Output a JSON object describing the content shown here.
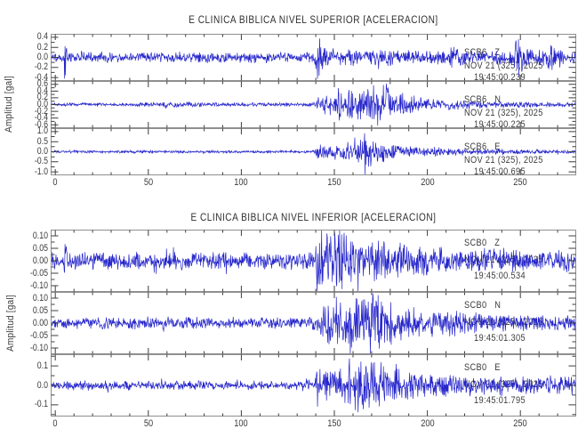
{
  "figure": {
    "background": "#ffffff",
    "trace_color": "#2626cb",
    "frame_color": "#8f8f8f",
    "tick_color": "#3d3d3d",
    "text_color": "#3a3a3a"
  },
  "chart_data": [
    {
      "type": "line",
      "title": "E CLINICA BIBLICA NIVEL SUPERIOR [ACELERACION]",
      "ylabel": "Amplitud [gal]",
      "xlim": [
        -2.5,
        280
      ],
      "xticks": [
        0,
        50,
        100,
        150,
        200,
        250
      ],
      "xtick_labels": [
        "0",
        "50",
        "100",
        "150",
        "200",
        "250"
      ],
      "x_minor_step": 10,
      "grid": false,
      "legend": "none",
      "traces": [
        {
          "station": "SCB6",
          "channel": "Z",
          "date_label": "NOV 21 (325), 2025",
          "time_label": "19:45:00.239",
          "ylim": [
            -0.47,
            0.47
          ],
          "yticks": [
            0.4,
            0.2,
            0.0,
            -0.2,
            -0.4
          ],
          "ytick_labels": [
            "0.4",
            "0.2",
            "0.0",
            "-0.2",
            "-0.4"
          ],
          "envelope": [
            [
              0,
              0.09
            ],
            [
              4,
              0.09
            ],
            [
              5,
              0.45
            ],
            [
              6.5,
              0.12
            ],
            [
              20,
              0.09
            ],
            [
              60,
              0.085
            ],
            [
              100,
              0.09
            ],
            [
              130,
              0.085
            ],
            [
              139,
              0.09
            ],
            [
              140.5,
              0.4
            ],
            [
              143,
              0.28
            ],
            [
              147,
              0.17
            ],
            [
              152,
              0.15
            ],
            [
              160,
              0.15
            ],
            [
              170,
              0.14
            ],
            [
              180,
              0.13
            ],
            [
              195,
              0.11
            ],
            [
              205,
              0.11
            ],
            [
              213,
              0.17
            ],
            [
              220,
              0.12
            ],
            [
              235,
              0.12
            ],
            [
              245,
              0.15
            ],
            [
              249,
              0.36
            ],
            [
              253,
              0.17
            ],
            [
              258,
              0.13
            ],
            [
              266,
              0.28
            ],
            [
              270,
              0.16
            ],
            [
              276,
              0.13
            ],
            [
              280,
              0.12
            ]
          ]
        },
        {
          "station": "SCB6",
          "channel": "N",
          "date_label": "NOV 21 (325), 2025",
          "time_label": "19:45:00.225",
          "ylim": [
            -0.7,
            0.7
          ],
          "yticks": [
            0.6,
            0.4,
            0.2,
            0.0,
            -0.2,
            -0.4,
            -0.6
          ],
          "ytick_labels": [
            "0.6",
            "0.4",
            "0.2",
            "0.0",
            "-0.2",
            "-0.4",
            "-0.6"
          ],
          "envelope": [
            [
              0,
              0.045
            ],
            [
              30,
              0.045
            ],
            [
              55,
              0.06
            ],
            [
              65,
              0.07
            ],
            [
              75,
              0.07
            ],
            [
              85,
              0.05
            ],
            [
              110,
              0.05
            ],
            [
              135,
              0.045
            ],
            [
              139,
              0.05
            ],
            [
              141,
              0.22
            ],
            [
              145,
              0.28
            ],
            [
              150,
              0.32
            ],
            [
              153,
              0.42
            ],
            [
              157,
              0.35
            ],
            [
              160,
              0.5
            ],
            [
              164,
              0.45
            ],
            [
              168,
              0.52
            ],
            [
              172,
              0.45
            ],
            [
              176,
              0.62
            ],
            [
              180,
              0.5
            ],
            [
              184,
              0.32
            ],
            [
              188,
              0.25
            ],
            [
              193,
              0.22
            ],
            [
              198,
              0.16
            ],
            [
              205,
              0.13
            ],
            [
              212,
              0.17
            ],
            [
              218,
              0.12
            ],
            [
              228,
              0.09
            ],
            [
              240,
              0.08
            ],
            [
              255,
              0.07
            ],
            [
              270,
              0.06
            ],
            [
              280,
              0.06
            ]
          ]
        },
        {
          "station": "SCB6",
          "channel": "E",
          "date_label": "NOV 21 (325), 2025",
          "time_label": "19:45:00.695",
          "ylim": [
            -1.17,
            1.17
          ],
          "yticks": [
            1.0,
            0.5,
            0.0,
            -0.5,
            -1.0
          ],
          "ytick_labels": [
            "1.0",
            "0.5",
            "0.0",
            "-0.5",
            "-1.0"
          ],
          "envelope": [
            [
              0,
              0.06
            ],
            [
              50,
              0.06
            ],
            [
              100,
              0.06
            ],
            [
              135,
              0.055
            ],
            [
              139,
              0.06
            ],
            [
              141,
              0.38
            ],
            [
              145,
              0.3
            ],
            [
              150,
              0.33
            ],
            [
              155,
              0.38
            ],
            [
              160,
              0.42
            ],
            [
              164,
              0.5
            ],
            [
              167,
              1.05
            ],
            [
              169,
              0.7
            ],
            [
              172,
              0.45
            ],
            [
              176,
              0.5
            ],
            [
              180,
              0.38
            ],
            [
              185,
              0.3
            ],
            [
              190,
              0.28
            ],
            [
              196,
              0.22
            ],
            [
              205,
              0.18
            ],
            [
              215,
              0.14
            ],
            [
              225,
              0.12
            ],
            [
              240,
              0.1
            ],
            [
              260,
              0.09
            ],
            [
              280,
              0.08
            ]
          ]
        }
      ]
    },
    {
      "type": "line",
      "title": "E CLINICA BIBLICA NIVEL INFERIOR [ACELERACION]",
      "ylabel": "Amplitud [gal]",
      "xlim": [
        -2.5,
        280
      ],
      "xticks": [
        0,
        50,
        100,
        150,
        200,
        250
      ],
      "xtick_labels": [
        "0",
        "50",
        "100",
        "150",
        "200",
        "250"
      ],
      "x_minor_step": 10,
      "grid": false,
      "legend": "none",
      "traces": [
        {
          "station": "SCB0",
          "channel": "Z",
          "date_label": "NOV 21 (325), 2025",
          "time_label": "19:45:00.534",
          "ylim": [
            -0.125,
            0.125
          ],
          "yticks": [
            0.1,
            0.05,
            0.0,
            -0.05,
            -0.1
          ],
          "ytick_labels": [
            "0.10",
            "0.05",
            "0.00",
            "-0.05",
            "-0.10"
          ],
          "envelope": [
            [
              0,
              0.028
            ],
            [
              4,
              0.028
            ],
            [
              5,
              0.1
            ],
            [
              6.5,
              0.03
            ],
            [
              30,
              0.028
            ],
            [
              70,
              0.03
            ],
            [
              110,
              0.028
            ],
            [
              135,
              0.028
            ],
            [
              139,
              0.03
            ],
            [
              140.5,
              0.12
            ],
            [
              144,
              0.1
            ],
            [
              148,
              0.09
            ],
            [
              152,
              0.11
            ],
            [
              156,
              0.09
            ],
            [
              160,
              0.08
            ],
            [
              165,
              0.085
            ],
            [
              170,
              0.075
            ],
            [
              176,
              0.07
            ],
            [
              182,
              0.06
            ],
            [
              190,
              0.055
            ],
            [
              200,
              0.05
            ],
            [
              212,
              0.045
            ],
            [
              225,
              0.04
            ],
            [
              240,
              0.04
            ],
            [
              260,
              0.038
            ],
            [
              280,
              0.035
            ]
          ]
        },
        {
          "station": "SCB0",
          "channel": "N",
          "date_label": "NOV 21 (325), 2025",
          "time_label": "19:45:01.305",
          "ylim": [
            -0.125,
            0.125
          ],
          "yticks": [
            0.1,
            0.05,
            0.0,
            -0.05,
            -0.1
          ],
          "ytick_labels": [
            "0.10",
            "0.05",
            "0.00",
            "-0.05",
            "-0.10"
          ],
          "envelope": [
            [
              0,
              0.018
            ],
            [
              60,
              0.02
            ],
            [
              120,
              0.018
            ],
            [
              136,
              0.018
            ],
            [
              140,
              0.04
            ],
            [
              144,
              0.06
            ],
            [
              148,
              0.08
            ],
            [
              152,
              0.09
            ],
            [
              156,
              0.1
            ],
            [
              160,
              0.12
            ],
            [
              164,
              0.1
            ],
            [
              168,
              0.12
            ],
            [
              172,
              0.1
            ],
            [
              176,
              0.08
            ],
            [
              181,
              0.07
            ],
            [
              187,
              0.06
            ],
            [
              194,
              0.05
            ],
            [
              202,
              0.045
            ],
            [
              212,
              0.04
            ],
            [
              225,
              0.035
            ],
            [
              245,
              0.03
            ],
            [
              265,
              0.028
            ],
            [
              280,
              0.028
            ]
          ]
        },
        {
          "station": "SCB0",
          "channel": "E",
          "date_label": "NOV 21 (325), 2025",
          "time_label": "19:45:01.795",
          "ylim": [
            -0.16,
            0.16
          ],
          "yticks": [
            0.1,
            0.0,
            -0.1
          ],
          "ytick_labels": [
            "0.1",
            "0.0",
            "-0.1"
          ],
          "envelope": [
            [
              0,
              0.02
            ],
            [
              60,
              0.02
            ],
            [
              120,
              0.019
            ],
            [
              136,
              0.02
            ],
            [
              139,
              0.02
            ],
            [
              141,
              0.09
            ],
            [
              144,
              0.07
            ],
            [
              148,
              0.075
            ],
            [
              152,
              0.08
            ],
            [
              156,
              0.09
            ],
            [
              160,
              0.1
            ],
            [
              164,
              0.11
            ],
            [
              167,
              0.15
            ],
            [
              170,
              0.12
            ],
            [
              174,
              0.1
            ],
            [
              178,
              0.09
            ],
            [
              183,
              0.08
            ],
            [
              190,
              0.065
            ],
            [
              198,
              0.055
            ],
            [
              208,
              0.05
            ],
            [
              220,
              0.045
            ],
            [
              235,
              0.04
            ],
            [
              242,
              0.055
            ],
            [
              248,
              0.04
            ],
            [
              262,
              0.04
            ],
            [
              280,
              0.038
            ]
          ]
        }
      ]
    }
  ]
}
